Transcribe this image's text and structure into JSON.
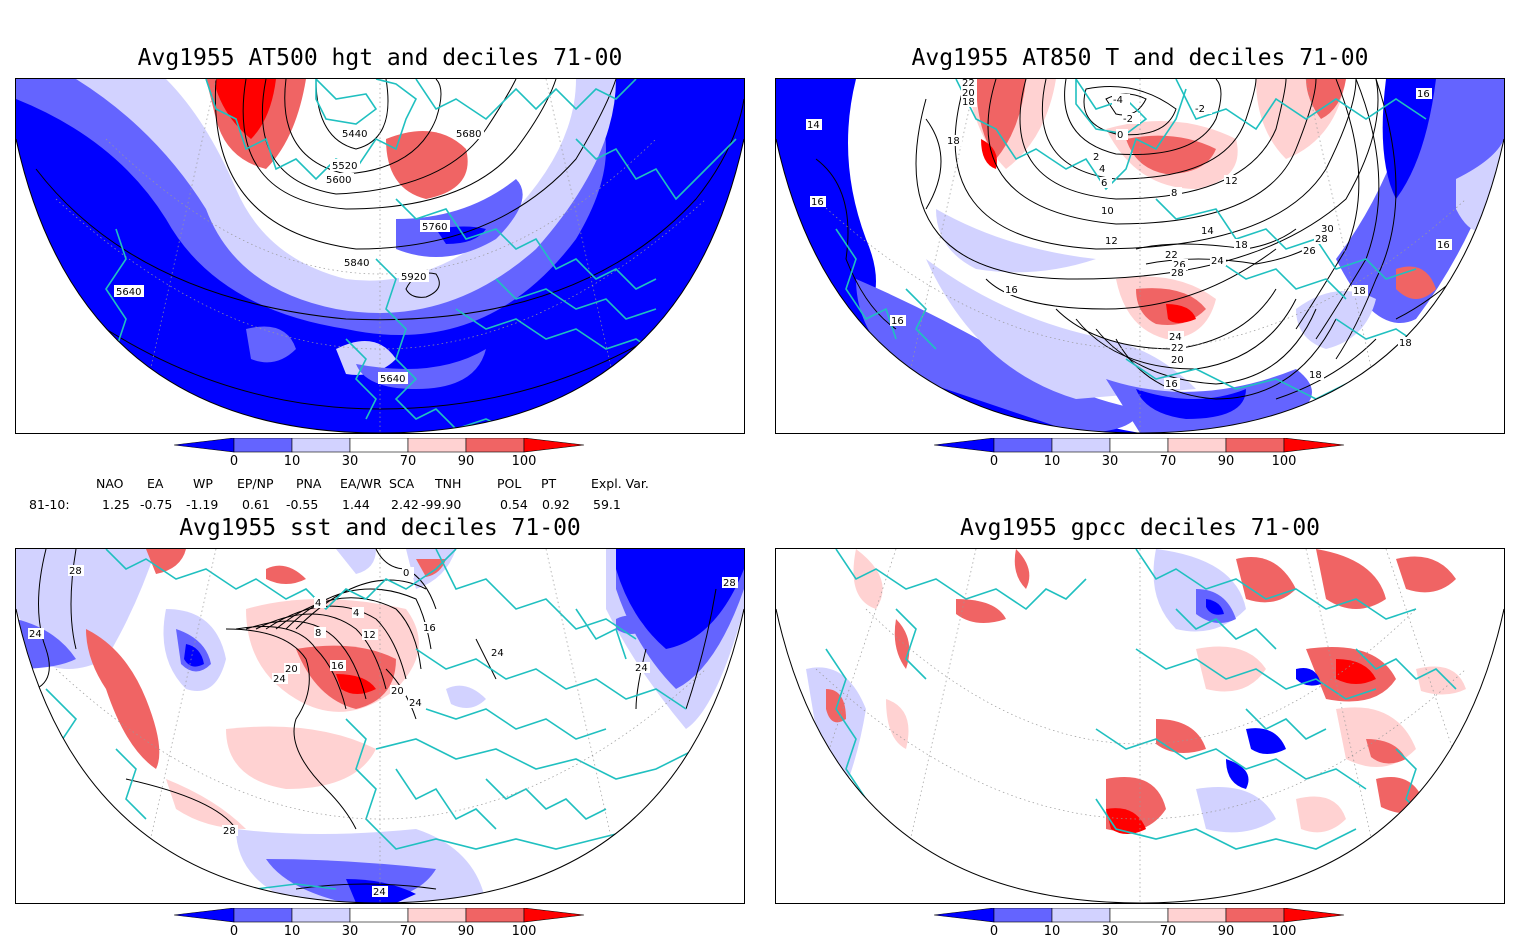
{
  "colors": {
    "dark_blue": "#0000ff",
    "mid_blue": "#6464ff",
    "light_blue": "#d2d2ff",
    "light_red": "#ffd2d2",
    "mid_red": "#f06464",
    "dark_red": "#ff0000",
    "coast": "#20c0c0",
    "contour": "#000000"
  },
  "panels": [
    {
      "title": "Avg1955 AT500 hgt and deciles 71-00",
      "contour_labels": [
        "5440",
        "5680",
        "5520",
        "5600",
        "5760",
        "5840",
        "5920",
        "5640",
        "5640"
      ]
    },
    {
      "title": "Avg1955 AT850 T and deciles 71-00",
      "contour_labels": [
        "22",
        "20",
        "18",
        "-4",
        "-2",
        "-2",
        "0",
        "2",
        "4",
        "6",
        "8",
        "10",
        "12",
        "12",
        "14",
        "14",
        "16",
        "16",
        "16",
        "16",
        "16",
        "16",
        "18",
        "18",
        "18",
        "18",
        "20",
        "22",
        "24",
        "24",
        "26",
        "28",
        "28",
        "30",
        "26",
        "22",
        "18"
      ]
    },
    {
      "title": "Avg1955 sst and deciles 71-00",
      "contour_labels": [
        "28",
        "24",
        "24",
        "0",
        "4",
        "4",
        "8",
        "12",
        "16",
        "16",
        "20",
        "20",
        "24",
        "24",
        "24",
        "28",
        "28",
        "24"
      ]
    },
    {
      "title": "Avg1955 gpcc deciles 71-00",
      "contour_labels": []
    }
  ],
  "colorbar": {
    "ticks": [
      "0",
      "10",
      "30",
      "70",
      "90",
      "100"
    ]
  },
  "indices": {
    "row_label": "81-10:",
    "headers": [
      "NAO",
      "EA",
      "WP",
      "EP/NP",
      "PNA",
      "EA/WR",
      "SCA",
      "TNH",
      "POL",
      "PT",
      "Expl. Var."
    ],
    "values": [
      "1.25",
      "-0.75",
      "-1.19",
      "0.61",
      "-0.55",
      "1.44",
      "2.42",
      "-99.90",
      "0.54",
      "0.92",
      "59.1"
    ]
  }
}
